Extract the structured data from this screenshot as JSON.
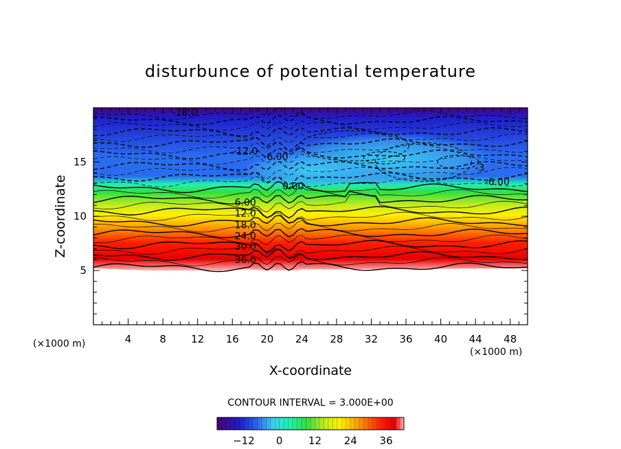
{
  "chart_data": {
    "type": "contour",
    "title": "disturbunce of potential temperature",
    "xlabel": "X-coordinate",
    "ylabel": "Z-coordinate",
    "x_unit": "(×1000 m)",
    "x_unit_right": "(×1000 m)",
    "xlim": [
      0,
      50
    ],
    "ylim": [
      0,
      20
    ],
    "x_ticks": [
      4,
      8,
      12,
      16,
      20,
      24,
      28,
      32,
      36,
      40,
      44,
      48
    ],
    "y_ticks": [
      5,
      10,
      15
    ],
    "data_z_range": [
      5,
      20
    ],
    "contour_interval": "CONTOUR INTERVAL = 3.000E+00",
    "contour_labels": [
      {
        "text": "-18.0",
        "x": 10.5,
        "z": 19.6
      },
      {
        "text": "-12.0",
        "x": 17.5,
        "z": 16.0
      },
      {
        "text": "-6.00",
        "x": 21.0,
        "z": 15.5
      },
      {
        "text": "-6.00",
        "x": 46.5,
        "z": 13.2
      },
      {
        "text": "-3",
        "x": 44.5,
        "z": 14.5
      },
      {
        "text": "0.00",
        "x": 23.0,
        "z": 12.8
      },
      {
        "text": "6.00",
        "x": 17.5,
        "z": 11.3
      },
      {
        "text": "12.0",
        "x": 17.5,
        "z": 10.3
      },
      {
        "text": "18.0",
        "x": 17.5,
        "z": 9.2
      },
      {
        "text": "24.0",
        "x": 17.5,
        "z": 8.2
      },
      {
        "text": "30.0",
        "x": 17.5,
        "z": 7.2
      },
      {
        "text": "36.0",
        "x": 17.5,
        "z": 6.0
      }
    ],
    "colorbar": {
      "min": -21,
      "max": 42,
      "ticks": [
        -12,
        0,
        12,
        24,
        36
      ]
    }
  },
  "colors": {
    "c0": "#4b007a",
    "c1": "#1e1ec8",
    "c2": "#2a6cf0",
    "c3": "#3cd0f0",
    "c4": "#20f0b4",
    "c5": "#30e040",
    "c6": "#c8ec1c",
    "c7": "#fff000",
    "c8": "#ff9600",
    "c9": "#ff1e00",
    "c10": "#e60000",
    "c11": "#ffb4b4"
  }
}
